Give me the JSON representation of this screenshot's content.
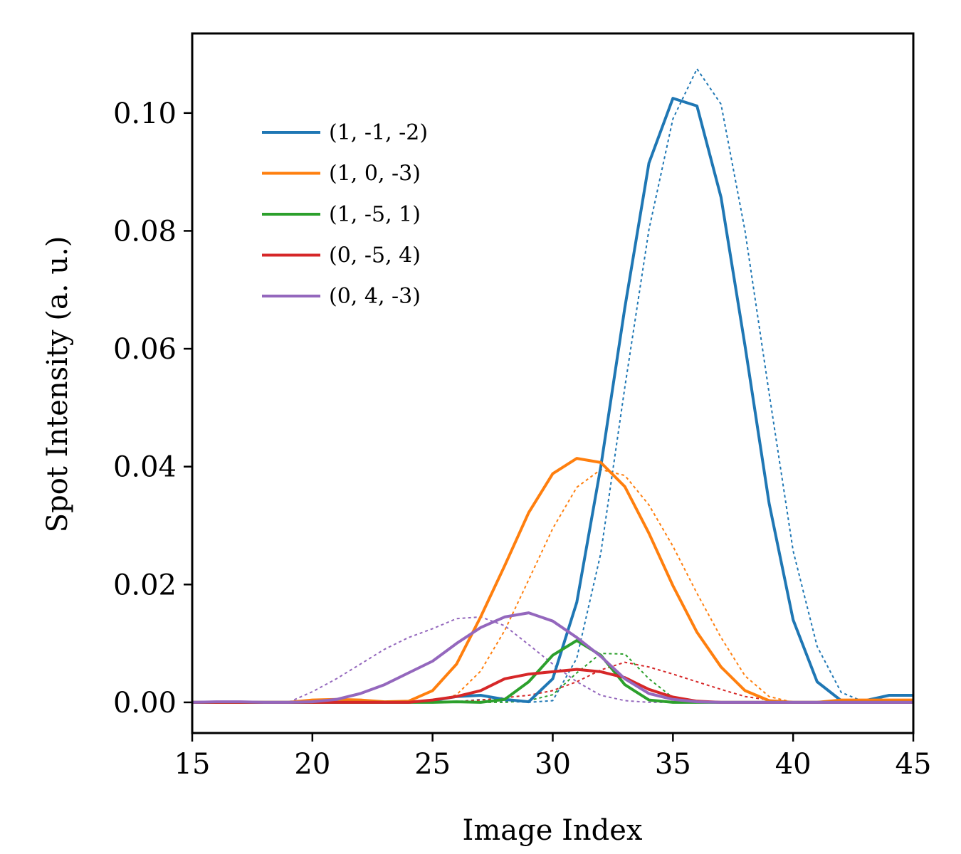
{
  "chart_data": {
    "type": "line",
    "title": "",
    "xlabel": "Image Index",
    "ylabel": "Spot Intensity (a. u.)",
    "xlim": [
      15,
      45
    ],
    "ylim": [
      -0.0052,
      0.1135
    ],
    "xticks": [
      15,
      20,
      25,
      30,
      35,
      40,
      45
    ],
    "xtick_labels": [
      "15",
      "20",
      "25",
      "30",
      "35",
      "40",
      "45"
    ],
    "yticks": [
      0.0,
      0.02,
      0.04,
      0.06,
      0.08,
      0.1
    ],
    "ytick_labels": [
      "0.00",
      "0.02",
      "0.04",
      "0.06",
      "0.08",
      "0.10"
    ],
    "grid": false,
    "legend_position": "upper-left",
    "x": [
      15,
      16,
      17,
      18,
      19,
      20,
      21,
      22,
      23,
      24,
      25,
      26,
      27,
      28,
      29,
      30,
      31,
      32,
      33,
      34,
      35,
      36,
      37,
      38,
      39,
      40,
      41,
      42,
      43,
      44,
      45
    ],
    "series": [
      {
        "name": "(1, -1, -2)",
        "color": "#1f77b4",
        "style": "solid",
        "values": [
          0,
          0,
          0,
          0,
          0,
          0,
          0,
          0,
          0,
          0,
          0.0003,
          0.001,
          0.0012,
          0.0005,
          0.0001,
          0.004,
          0.017,
          0.04,
          0.067,
          0.0915,
          0.1025,
          0.1012,
          0.0857,
          0.0605,
          0.0338,
          0.014,
          0.0035,
          0.0003,
          0.0003,
          0.0012,
          0.0012
        ]
      },
      {
        "name": "(1, 0, -3)",
        "color": "#ff7f0e",
        "style": "solid",
        "values": [
          0,
          0,
          0,
          0,
          0,
          0.0004,
          0.0005,
          0.0004,
          0.0001,
          0.0002,
          0.002,
          0.0065,
          0.0145,
          0.0232,
          0.0322,
          0.0388,
          0.0414,
          0.0407,
          0.0366,
          0.0287,
          0.0198,
          0.0119,
          0.006,
          0.002,
          0.0003,
          0,
          0,
          0.0004,
          0.0004,
          0.0004,
          0.0004
        ]
      },
      {
        "name": "(1, -5, 1)",
        "color": "#2ca02c",
        "style": "solid",
        "values": [
          0,
          0,
          0,
          0,
          0,
          0,
          0,
          0,
          0,
          0,
          0,
          0.0001,
          0,
          0.0005,
          0.0035,
          0.008,
          0.0105,
          0.008,
          0.003,
          0.0004,
          0,
          0,
          0,
          0,
          0,
          0,
          0,
          0,
          0,
          0,
          0
        ]
      },
      {
        "name": "(0, -5, 4)",
        "color": "#d62728",
        "style": "solid",
        "values": [
          0,
          0,
          0,
          0,
          0,
          0,
          0,
          0,
          0,
          0,
          0.0004,
          0.001,
          0.002,
          0.004,
          0.0048,
          0.0052,
          0.0056,
          0.0052,
          0.0042,
          0.0022,
          0.0009,
          0.0002,
          0,
          0,
          0,
          0,
          0,
          0,
          0,
          0,
          0
        ]
      },
      {
        "name": "(0, 4, -3)",
        "color": "#9467bd",
        "style": "solid",
        "values": [
          0,
          0.0001,
          0.0001,
          0,
          0,
          0.0001,
          0.0005,
          0.0015,
          0.003,
          0.005,
          0.007,
          0.01,
          0.0127,
          0.0145,
          0.0152,
          0.0138,
          0.011,
          0.0078,
          0.004,
          0.0015,
          0.0005,
          0.0001,
          0,
          0,
          0,
          0,
          0,
          0,
          0,
          0,
          0
        ]
      },
      {
        "color": "#1f77b4",
        "style": "dotted",
        "values": [
          0,
          0,
          0,
          0,
          0,
          0,
          0,
          0,
          0,
          0,
          0,
          0.0001,
          0.0005,
          0.0002,
          0,
          0.0003,
          0.0075,
          0.0253,
          0.0535,
          0.0802,
          0.099,
          0.1075,
          0.1015,
          0.08,
          0.0525,
          0.0257,
          0.0095,
          0.0017,
          0,
          0,
          0
        ]
      },
      {
        "color": "#ff7f0e",
        "style": "dotted",
        "values": [
          0,
          0,
          0,
          0,
          0,
          0,
          0,
          0,
          0,
          0,
          0,
          0.0013,
          0.0053,
          0.0122,
          0.0208,
          0.0295,
          0.0365,
          0.0395,
          0.0385,
          0.0335,
          0.0265,
          0.0185,
          0.011,
          0.0045,
          0.001,
          0,
          0,
          0,
          0,
          0,
          0
        ]
      },
      {
        "color": "#2ca02c",
        "style": "dotted",
        "values": [
          0,
          0,
          0,
          0,
          0,
          0,
          0,
          0,
          0,
          0,
          0,
          0,
          0,
          0,
          0.0003,
          0.0013,
          0.005,
          0.0083,
          0.0082,
          0.004,
          0.0008,
          0,
          0,
          0,
          0,
          0,
          0,
          0,
          0,
          0,
          0
        ]
      },
      {
        "color": "#d62728",
        "style": "dotted",
        "values": [
          0,
          0,
          0,
          0,
          0,
          0,
          0,
          0,
          0,
          0,
          0,
          0.0001,
          0.0004,
          0.0008,
          0.0012,
          0.002,
          0.0035,
          0.0055,
          0.0068,
          0.006,
          0.0048,
          0.0035,
          0.0022,
          0.001,
          0.0004,
          0.0001,
          0,
          0,
          0,
          0,
          0
        ]
      },
      {
        "color": "#9467bd",
        "style": "dotted",
        "values": [
          0,
          0,
          0,
          0,
          0,
          0.0018,
          0.004,
          0.0065,
          0.009,
          0.011,
          0.0125,
          0.0142,
          0.0145,
          0.013,
          0.0098,
          0.0065,
          0.0035,
          0.0012,
          0.0003,
          0,
          0,
          0,
          0,
          0,
          0,
          0,
          0,
          0,
          0,
          0,
          0
        ]
      }
    ]
  }
}
